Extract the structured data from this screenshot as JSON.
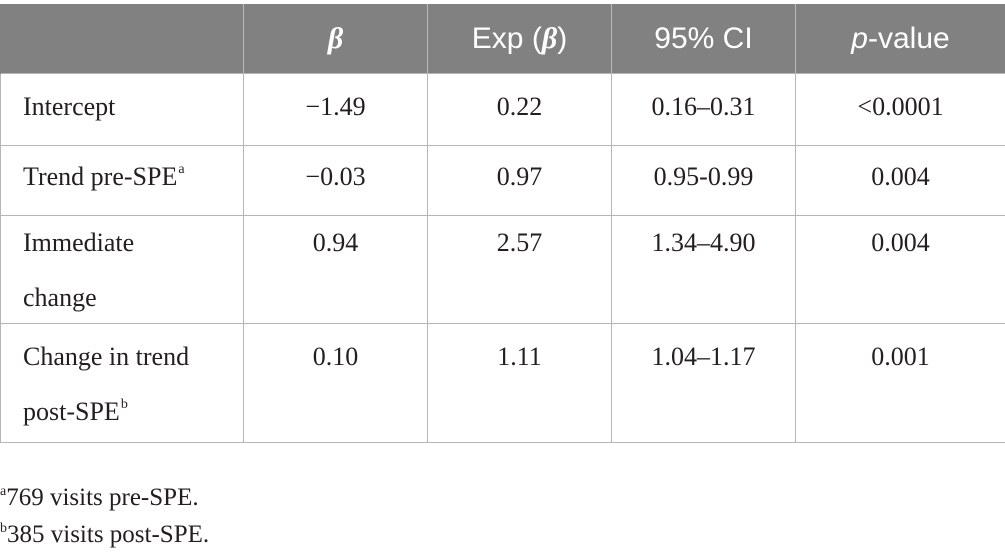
{
  "table": {
    "headers": [
      {
        "text": ""
      },
      {
        "prefix": "",
        "italic": "β",
        "suffix": ""
      },
      {
        "prefix": "Exp (",
        "italic": "β",
        "suffix": ")"
      },
      {
        "prefix": "95% CI",
        "italic": "",
        "suffix": ""
      },
      {
        "prefix": "",
        "italic": "p",
        "suffix": "-value"
      }
    ],
    "rows": [
      {
        "label_line1": "Intercept",
        "label_line2": "",
        "label_sup": "",
        "beta": "−1.49",
        "exp_beta": "0.22",
        "ci": "0.16–0.31",
        "p_value": "<0.0001"
      },
      {
        "label_line1": "Trend pre-SPE",
        "label_line2": "",
        "label_sup": "a",
        "beta": "−0.03",
        "exp_beta": "0.97",
        "ci": "0.95-0.99",
        "p_value": "0.004"
      },
      {
        "label_line1": "Immediate",
        "label_line2": "change",
        "label_sup": "",
        "beta": "0.94",
        "exp_beta": "2.57",
        "ci": "1.34–4.90",
        "p_value": "0.004"
      },
      {
        "label_line1": "Change in trend",
        "label_line2": "post-SPE",
        "label_sup": "b",
        "beta": "0.10",
        "exp_beta": "1.11",
        "ci": "1.04–1.17",
        "p_value": "0.001"
      }
    ]
  },
  "footnotes": [
    {
      "mark": "a",
      "text": "769 visits pre-SPE."
    },
    {
      "mark": "b",
      "text": "385 visits post-SPE."
    }
  ]
}
